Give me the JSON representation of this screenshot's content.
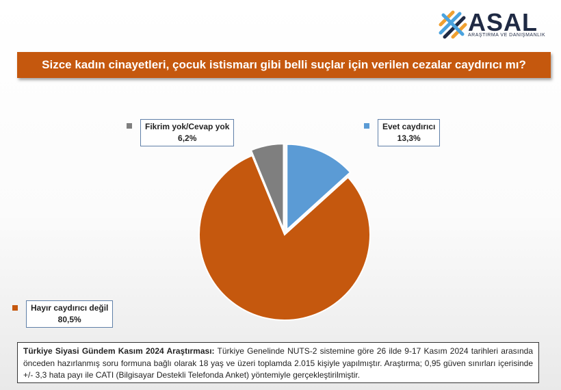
{
  "logo": {
    "name": "ASAL",
    "subtitle": "ARAŞTIRMA VE DANIŞMANLIK"
  },
  "colors": {
    "title_bg": "#c5580e",
    "evet": "#5b9bd5",
    "hayir": "#c5580e",
    "fikrim": "#7f7f7f"
  },
  "chart_data": {
    "type": "pie",
    "title": "Sizce kadın cinayetleri, çocuk istismarı gibi belli suçlar için verilen cezalar caydırıcı mı?",
    "slices": [
      {
        "label": "Evet caydırıcı",
        "value": 13.3,
        "display": "13,3%",
        "color": "#5b9bd5",
        "exploded": true
      },
      {
        "label": "Hayır caydırıcı değil",
        "value": 80.5,
        "display": "80,5%",
        "color": "#c5580e",
        "exploded": false
      },
      {
        "label": "Fikrim yok/Cevap yok",
        "value": 6.2,
        "display": "6,2%",
        "color": "#7f7f7f",
        "exploded": true
      }
    ]
  },
  "footer": {
    "bold": "Türkiye Siyasi Gündem Kasım 2024 Araştırması:",
    "text": " Türkiye Genelinde NUTS-2 sistemine göre 26 ilde 9-17 Kasım 2024 tarihleri arasında önceden hazırlanmış soru formuna bağlı olarak 18 yaş ve üzeri toplamda 2.015 kişiyle yapılmıştır. Araştırma; 0,95 güven sınırları içerisinde +/- 3,3 hata payı ile CATI (Bilgisayar Destekli Telefonda Anket) yöntemiyle gerçekleştirilmiştir."
  }
}
